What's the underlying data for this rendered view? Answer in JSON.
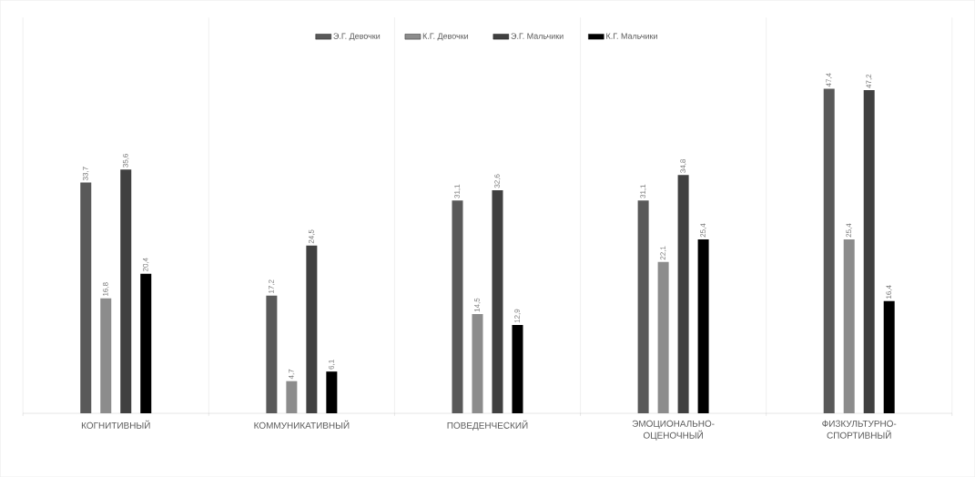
{
  "chart_data": {
    "type": "bar",
    "categories": [
      "КОГНИТИВНЫЙ",
      "КОММУНИКАТИВНЫЙ",
      "ПОВЕДЕНЧЕСКИЙ",
      "ЭМОЦИОНАЛЬНО-ОЦЕНОЧНЫЙ",
      "ФИЗКУЛЬТУРНО-СПОРТИВНЫЙ"
    ],
    "series": [
      {
        "name": "Э.Г. Девочки",
        "color": "#595959",
        "values": [
          33.7,
          17.2,
          31.1,
          31.1,
          47.4
        ],
        "value_labels": [
          "33,7",
          "17,2",
          "31,1",
          "31,1",
          "47,4"
        ]
      },
      {
        "name": "К.Г. Девочки",
        "color": "#8c8c8c",
        "values": [
          16.8,
          4.7,
          14.5,
          22.1,
          25.4
        ],
        "value_labels": [
          "16,8",
          "4,7",
          "14,5",
          "22,1",
          "25,4"
        ]
      },
      {
        "name": "Э.Г. Мальчики",
        "color": "#404040",
        "values": [
          35.6,
          24.5,
          32.6,
          34.8,
          47.2
        ],
        "value_labels": [
          "35,6",
          "24,5",
          "32,6",
          "34,8",
          "47,2"
        ]
      },
      {
        "name": "К.Г. Мальчики",
        "color": "#000000",
        "values": [
          20.4,
          6.1,
          12.9,
          25.4,
          16.4
        ],
        "value_labels": [
          "20,4",
          "6,1",
          "12,9",
          "25,4",
          "16,4"
        ]
      }
    ],
    "legend": "top"
  }
}
